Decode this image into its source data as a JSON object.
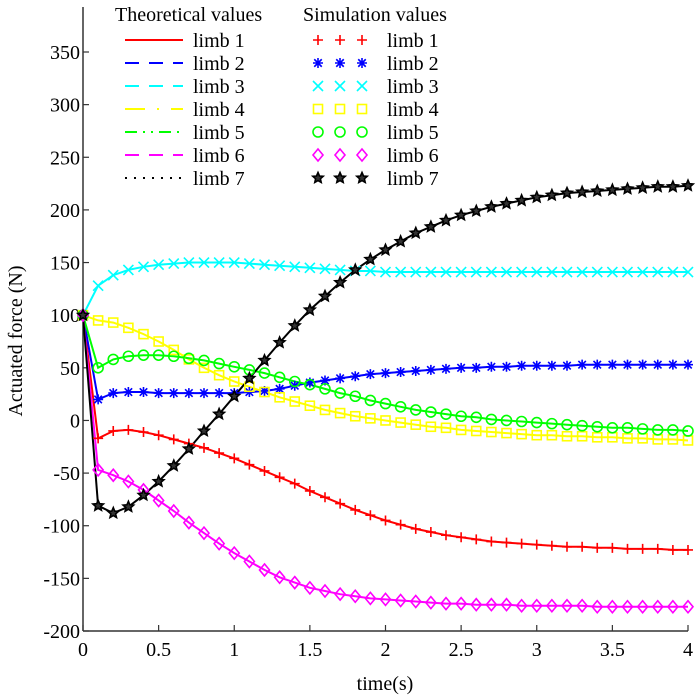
{
  "chart_data": {
    "type": "line",
    "title": "",
    "xlabel": "time(s)",
    "ylabel": "Actuated force  (N)",
    "xlim": [
      0,
      4
    ],
    "ylim": [
      -200,
      350
    ],
    "xticks": [
      0,
      0.5,
      1,
      1.5,
      2,
      2.5,
      3,
      3.5,
      4
    ],
    "xtick_labels": [
      "0",
      "0.5",
      "1",
      "1.5",
      "2",
      "2.5",
      "3",
      "3.5",
      "4"
    ],
    "yticks": [
      -200,
      -150,
      -100,
      -50,
      0,
      50,
      100,
      150,
      200,
      250,
      300,
      350
    ],
    "ytick_labels": [
      "-200",
      "-150",
      "-100",
      "-50",
      "0",
      "50",
      "100",
      "150",
      "200",
      "250",
      "300",
      "350"
    ],
    "grid": false,
    "legend": {
      "placement": "top",
      "theoretical_header": "Theoretical values",
      "simulation_header": "Simulation values"
    },
    "x": [
      0,
      0.1,
      0.2,
      0.3,
      0.4,
      0.5,
      0.6,
      0.7,
      0.8,
      0.9,
      1.0,
      1.1,
      1.2,
      1.3,
      1.4,
      1.5,
      1.6,
      1.7,
      1.8,
      1.9,
      2.0,
      2.1,
      2.2,
      2.3,
      2.4,
      2.5,
      2.6,
      2.7,
      2.8,
      2.9,
      3.0,
      3.1,
      3.2,
      3.3,
      3.4,
      3.5,
      3.6,
      3.7,
      3.8,
      3.9,
      4.0
    ],
    "series": [
      {
        "name": "limb 1",
        "color": "#ff0000",
        "line": "solid",
        "marker": "plus",
        "values": [
          100,
          -17,
          -10,
          -9,
          -11,
          -14,
          -18,
          -22,
          -26,
          -31,
          -36,
          -42,
          -48,
          -54,
          -60,
          -67,
          -73,
          -79,
          -85,
          -90,
          -95,
          -99,
          -103,
          -106,
          -109,
          -111,
          -113,
          -115,
          -116,
          -117,
          -118,
          -119,
          -120,
          -120,
          -121,
          -121,
          -122,
          -122,
          -122,
          -123,
          -123
        ]
      },
      {
        "name": "limb 2",
        "color": "#0000ff",
        "line": "dash",
        "marker": "asterisk",
        "values": [
          100,
          20,
          26,
          27,
          27,
          26,
          26,
          26,
          26,
          26,
          26,
          27,
          28,
          30,
          33,
          36,
          38,
          40,
          42,
          44,
          45,
          46,
          47,
          48,
          49,
          50,
          50,
          51,
          51,
          52,
          52,
          52,
          52,
          53,
          53,
          53,
          53,
          53,
          53,
          53,
          53
        ]
      },
      {
        "name": "limb 3",
        "color": "#00ffff",
        "line": "dash",
        "marker": "x",
        "values": [
          100,
          128,
          138,
          143,
          146,
          148,
          149,
          150,
          150,
          150,
          150,
          149,
          148,
          147,
          146,
          145,
          144,
          143,
          142,
          142,
          141,
          141,
          141,
          141,
          141,
          141,
          141,
          141,
          141,
          141,
          141,
          141,
          141,
          141,
          141,
          141,
          141,
          141,
          141,
          141,
          141
        ]
      },
      {
        "name": "limb 4",
        "color": "#ffff00",
        "line": "dashdot",
        "marker": "square",
        "values": [
          100,
          95,
          93,
          88,
          82,
          75,
          67,
          58,
          50,
          43,
          37,
          32,
          27,
          22,
          18,
          14,
          10,
          7,
          4,
          2,
          0,
          -2,
          -4,
          -6,
          -7,
          -9,
          -10,
          -11,
          -12,
          -13,
          -14,
          -14,
          -15,
          -15,
          -16,
          -16,
          -17,
          -17,
          -18,
          -18,
          -19
        ]
      },
      {
        "name": "limb 5",
        "color": "#00ff00",
        "line": "dashdotdot",
        "marker": "circle",
        "values": [
          100,
          50,
          58,
          61,
          62,
          62,
          61,
          59,
          57,
          54,
          51,
          48,
          45,
          41,
          37,
          34,
          30,
          26,
          23,
          19,
          16,
          13,
          10,
          8,
          6,
          4,
          3,
          1,
          0,
          -1,
          -2,
          -3,
          -4,
          -5,
          -6,
          -7,
          -7,
          -8,
          -9,
          -9,
          -10
        ]
      },
      {
        "name": "limb 6",
        "color": "#ff00ff",
        "line": "dash",
        "marker": "diamond",
        "values": [
          100,
          -47,
          -52,
          -58,
          -66,
          -76,
          -86,
          -97,
          -107,
          -117,
          -126,
          -134,
          -142,
          -149,
          -154,
          -159,
          -162,
          -165,
          -167,
          -169,
          -170,
          -171,
          -172,
          -173,
          -174,
          -174,
          -175,
          -175,
          -175,
          -176,
          -176,
          -176,
          -176,
          -176,
          -177,
          -177,
          -177,
          -177,
          -177,
          -177,
          -177
        ]
      },
      {
        "name": "limb 7",
        "color": "#000000",
        "line": "dot",
        "marker": "star",
        "values": [
          100,
          -81,
          -88,
          -82,
          -71,
          -58,
          -43,
          -27,
          -10,
          6,
          23,
          40,
          57,
          74,
          90,
          105,
          118,
          131,
          143,
          153,
          162,
          170,
          178,
          184,
          190,
          195,
          199,
          203,
          206,
          209,
          212,
          214,
          216,
          217,
          218,
          219,
          220,
          221,
          222,
          222,
          223
        ]
      }
    ]
  }
}
